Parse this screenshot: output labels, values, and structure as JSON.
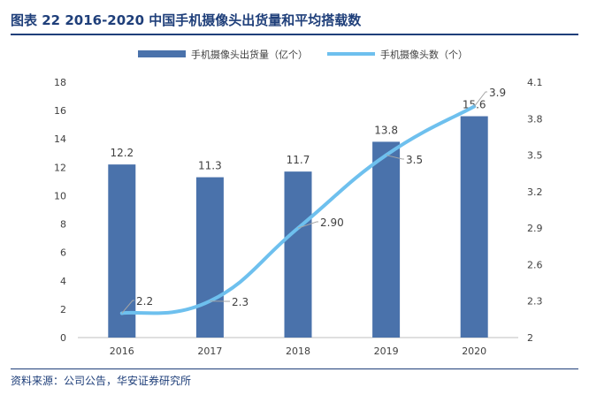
{
  "header": {
    "title": "图表 22 2016-2020 中国手机摄像头出货量和平均搭载数"
  },
  "footer": {
    "source": "资料来源：公司公告，华安证券研究所"
  },
  "colors": {
    "bar": "#4a72ab",
    "line": "#6ec0ee",
    "title": "#1f3f7a",
    "text": "#404040",
    "axis": "#bfbfbf"
  },
  "chart_data": {
    "type": "bar",
    "categories": [
      "2016",
      "2017",
      "2018",
      "2019",
      "2020"
    ],
    "series": [
      {
        "name": "手机摄像头出货量（亿个）",
        "type": "bar",
        "axis": "left",
        "values": [
          12.2,
          11.3,
          11.7,
          13.8,
          15.6
        ],
        "labels": [
          "12.2",
          "11.3",
          "11.7",
          "13.8",
          "15.6"
        ]
      },
      {
        "name": "手机摄像头数（个）",
        "type": "line",
        "axis": "right",
        "values": [
          2.2,
          2.3,
          2.9,
          3.5,
          3.9
        ],
        "labels": [
          "2.2",
          "2.3",
          "2.90",
          "3.5",
          "3.9"
        ]
      }
    ],
    "y_left": {
      "min": 0,
      "max": 18,
      "ticks": [
        "0",
        "2",
        "4",
        "6",
        "8",
        "10",
        "12",
        "14",
        "16",
        "18"
      ]
    },
    "y_right": {
      "min": 2,
      "max": 4.1,
      "ticks": [
        "2",
        "2.3",
        "2.6",
        "2.9",
        "3.2",
        "3.5",
        "3.8",
        "4.1"
      ]
    },
    "legend_position": "top",
    "grid": false
  }
}
